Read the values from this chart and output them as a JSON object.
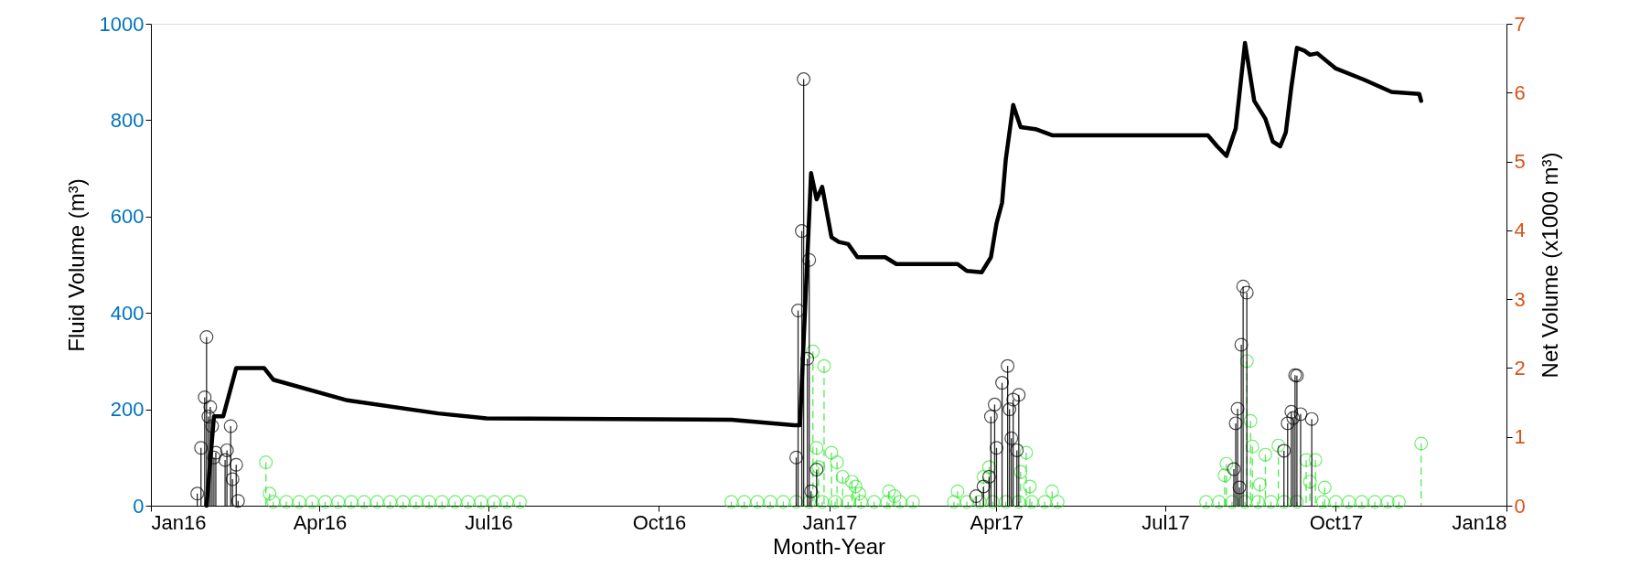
{
  "chart_data": {
    "type": "lollipop",
    "xlabel": "Month-Year",
    "ylabel": "Fluid Volume (m³)",
    "y2label": "Net Volume (x1000 m³)",
    "xlim": [
      "2016-01-01",
      "2018-01-01"
    ],
    "xticks": [
      {
        "value": "2016-01-01",
        "label": "Jan16"
      },
      {
        "value": "2016-04-01",
        "label": "Apr16"
      },
      {
        "value": "2016-07-01",
        "label": "Jul16"
      },
      {
        "value": "2016-10-01",
        "label": "Oct16"
      },
      {
        "value": "2017-01-01",
        "label": "Jan17"
      },
      {
        "value": "2017-04-01",
        "label": "Apr17"
      },
      {
        "value": "2017-07-01",
        "label": "Jul17"
      },
      {
        "value": "2017-10-01",
        "label": "Oct17"
      },
      {
        "value": "2018-01-01",
        "label": "Jan18"
      }
    ],
    "ylim": [
      0,
      1000
    ],
    "yticks": [
      0,
      200,
      400,
      600,
      800,
      1000
    ],
    "y2lim": [
      0,
      7
    ],
    "y2ticks": [
      0,
      1,
      2,
      3,
      4,
      5,
      6,
      7
    ],
    "marker": "circle",
    "series": [
      {
        "color": "#33e633",
        "line_style": "dashed",
        "x": [
          "2016-03-03",
          "2016-03-05",
          "2016-03-07",
          "2016-03-14",
          "2016-03-21",
          "2016-03-28",
          "2016-04-04",
          "2016-04-11",
          "2016-04-18",
          "2016-04-25",
          "2016-05-02",
          "2016-05-09",
          "2016-05-16",
          "2016-05-23",
          "2016-05-30",
          "2016-06-06",
          "2016-06-13",
          "2016-06-20",
          "2016-06-27",
          "2016-07-04",
          "2016-07-11",
          "2016-07-18",
          "2016-11-09",
          "2016-11-16",
          "2016-11-23",
          "2016-11-30",
          "2016-12-07",
          "2016-12-14",
          "2016-12-21",
          "2016-12-23",
          "2016-12-25",
          "2016-12-26",
          "2016-12-28",
          "2016-12-29",
          "2017-01-02",
          "2017-01-04",
          "2017-01-05",
          "2017-01-08",
          "2017-01-11",
          "2017-01-13",
          "2017-01-15",
          "2017-01-17",
          "2017-01-18",
          "2017-01-25",
          "2017-02-01",
          "2017-02-02",
          "2017-02-05",
          "2017-02-08",
          "2017-02-15",
          "2017-03-09",
          "2017-03-11",
          "2017-03-16",
          "2017-03-23",
          "2017-03-25",
          "2017-03-28",
          "2017-03-30",
          "2017-04-06",
          "2017-04-13",
          "2017-04-14",
          "2017-04-17",
          "2017-04-19",
          "2017-04-20",
          "2017-04-27",
          "2017-05-01",
          "2017-05-04",
          "2017-07-23",
          "2017-07-30",
          "2017-08-02",
          "2017-08-03",
          "2017-08-06",
          "2017-08-13",
          "2017-08-14",
          "2017-08-16",
          "2017-08-17",
          "2017-08-20",
          "2017-08-21",
          "2017-08-24",
          "2017-08-27",
          "2017-08-31",
          "2017-09-03",
          "2017-09-10",
          "2017-09-15",
          "2017-09-17",
          "2017-09-20",
          "2017-09-24",
          "2017-09-25",
          "2017-10-01",
          "2017-10-08",
          "2017-10-15",
          "2017-10-22",
          "2017-10-29",
          "2017-11-04",
          "2017-11-16"
        ],
        "values": [
          90,
          25,
          8,
          8,
          8,
          8,
          8,
          8,
          8,
          8,
          8,
          8,
          8,
          8,
          8,
          8,
          8,
          8,
          8,
          8,
          8,
          8,
          8,
          8,
          8,
          8,
          8,
          8,
          8,
          320,
          120,
          80,
          8,
          290,
          110,
          8,
          90,
          60,
          8,
          50,
          40,
          25,
          8,
          8,
          8,
          30,
          20,
          8,
          8,
          8,
          30,
          8,
          8,
          60,
          80,
          8,
          8,
          8,
          70,
          110,
          40,
          8,
          8,
          30,
          8,
          8,
          8,
          63,
          87,
          8,
          8,
          300,
          176,
          123,
          8,
          44,
          106,
          8,
          125,
          8,
          8,
          95,
          50,
          95,
          8,
          38,
          8,
          8,
          8,
          8,
          8,
          8,
          129
        ]
      },
      {
        "color": "#000000",
        "line_style": "solid",
        "x": [
          "2016-01-26",
          "2016-01-28",
          "2016-01-30",
          "2016-01-31",
          "2016-02-01",
          "2016-02-02",
          "2016-02-03",
          "2016-02-04",
          "2016-02-05",
          "2016-02-10",
          "2016-02-11",
          "2016-02-13",
          "2016-02-14",
          "2016-02-16",
          "2016-02-17",
          "2016-12-14",
          "2016-12-15",
          "2016-12-17",
          "2016-12-18",
          "2016-12-20",
          "2016-12-21",
          "2016-12-22",
          "2016-12-25",
          "2017-03-21",
          "2017-03-25",
          "2017-03-28",
          "2017-03-29",
          "2017-03-31",
          "2017-04-01",
          "2017-04-04",
          "2017-04-07",
          "2017-04-08",
          "2017-04-09",
          "2017-04-10",
          "2017-04-12",
          "2017-04-13",
          "2017-08-07",
          "2017-08-08",
          "2017-08-09",
          "2017-08-10",
          "2017-08-11",
          "2017-08-12",
          "2017-08-14",
          "2017-09-03",
          "2017-09-05",
          "2017-09-07",
          "2017-09-08",
          "2017-09-09",
          "2017-09-10",
          "2017-09-12",
          "2017-09-18"
        ],
        "values": [
          25,
          120,
          225,
          350,
          185,
          205,
          165,
          100,
          110,
          95,
          115,
          165,
          55,
          85,
          10,
          100,
          405,
          570,
          885,
          305,
          510,
          30,
          75,
          20,
          40,
          60,
          185,
          210,
          120,
          255,
          290,
          200,
          140,
          220,
          115,
          230,
          76,
          171,
          201,
          38,
          334,
          455,
          442,
          114,
          171,
          195,
          182,
          271,
          270,
          190,
          180
        ]
      },
      {
        "type": "line",
        "axis": "y2",
        "color": "#000000",
        "line_style": "solid",
        "marker": "none",
        "x": [
          "2016-01-31",
          "2016-02-04",
          "2016-02-09",
          "2016-02-16",
          "2016-03-02",
          "2016-03-07",
          "2016-04-16",
          "2016-06-04",
          "2016-06-30",
          "2016-11-09",
          "2016-12-13",
          "2016-12-16",
          "2016-12-22",
          "2016-12-25",
          "2016-12-28",
          "2017-01-02",
          "2017-01-06",
          "2017-01-11",
          "2017-01-16",
          "2017-01-31",
          "2017-02-06",
          "2017-03-11",
          "2017-03-16",
          "2017-03-24",
          "2017-03-29",
          "2017-04-01",
          "2017-04-04",
          "2017-04-06",
          "2017-04-10",
          "2017-04-14",
          "2017-04-22",
          "2017-05-01",
          "2017-07-24",
          "2017-07-29",
          "2017-08-03",
          "2017-08-08",
          "2017-08-13",
          "2017-08-18",
          "2017-08-24",
          "2017-08-28",
          "2017-09-01",
          "2017-09-04",
          "2017-09-07",
          "2017-09-10",
          "2017-09-14",
          "2017-09-17",
          "2017-09-21",
          "2017-10-01",
          "2017-10-16",
          "2017-10-31",
          "2017-11-15",
          "2017-11-16"
        ],
        "values": [
          0,
          1.3,
          1.3,
          2.0,
          2.0,
          1.83,
          1.53,
          1.34,
          1.27,
          1.25,
          1.17,
          1.17,
          4.83,
          4.45,
          4.63,
          3.9,
          3.83,
          3.8,
          3.61,
          3.61,
          3.51,
          3.51,
          3.41,
          3.39,
          3.61,
          4.1,
          4.4,
          5.03,
          5.82,
          5.5,
          5.47,
          5.38,
          5.38,
          5.22,
          5.08,
          5.48,
          6.72,
          5.88,
          5.62,
          5.29,
          5.22,
          5.42,
          6.08,
          6.65,
          6.61,
          6.55,
          6.57,
          6.35,
          6.19,
          6.01,
          5.98,
          5.88
        ]
      }
    ]
  }
}
